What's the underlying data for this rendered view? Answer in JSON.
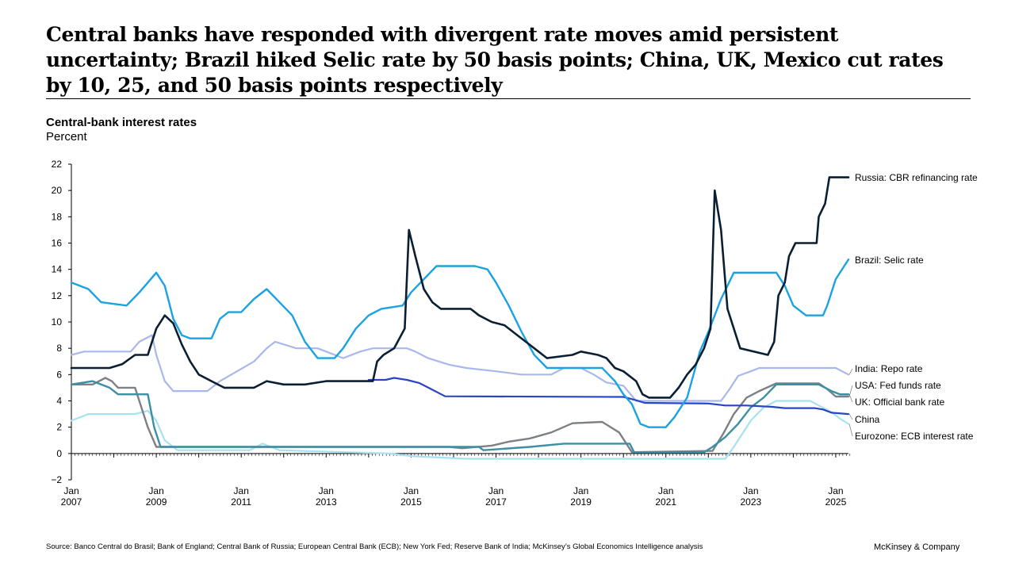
{
  "title": "Central banks have responded with divergent rate moves amid persistent uncertainty; Brazil hiked Selic rate by 50 basis points; China, UK, Mexico cut rates by 10, 25, and 50 basis points respectively",
  "footer": {
    "source": "Source: Banco Central do Brasil; Bank of England; Central Bank of Russia; European Central Bank (ECB); New York Fed; Reserve Bank of India; McKinsey’s Global Economics Intelligence analysis",
    "brand": "McKinsey & Company"
  },
  "chart_data": {
    "type": "line",
    "title": "Central-bank interest rates",
    "ylabel": "Percent",
    "xlabel": "",
    "ylim": [
      -2,
      22
    ],
    "xlim": [
      2007.0,
      2025.3
    ],
    "yticks": [
      "−2",
      "0",
      "2",
      "4",
      "6",
      "8",
      "10",
      "12",
      "14",
      "16",
      "18",
      "20",
      "22"
    ],
    "xticks": [
      {
        "year": 2007,
        "top": "Jan",
        "bottom": "2007"
      },
      {
        "year": 2009,
        "top": "Jan",
        "bottom": "2009"
      },
      {
        "year": 2011,
        "top": "Jan",
        "bottom": "2011"
      },
      {
        "year": 2013,
        "top": "Jan",
        "bottom": "2013"
      },
      {
        "year": 2015,
        "top": "Jan",
        "bottom": "2015"
      },
      {
        "year": 2017,
        "top": "Jan",
        "bottom": "2017"
      },
      {
        "year": 2019,
        "top": "Jan",
        "bottom": "2019"
      },
      {
        "year": 2021,
        "top": "Jan",
        "bottom": "2021"
      },
      {
        "year": 2023,
        "top": "Jan",
        "bottom": "2023"
      },
      {
        "year": 2025,
        "top": "Jan",
        "bottom": "2025"
      }
    ],
    "series": [
      {
        "name": "Russia: CBR refinancing rate",
        "color": "#0b1f33",
        "width": 2.6,
        "label_value": 21.0,
        "points": [
          [
            2007.0,
            6.5
          ],
          [
            2007.9,
            6.5
          ],
          [
            2008.2,
            6.8
          ],
          [
            2008.5,
            7.5
          ],
          [
            2008.8,
            7.5
          ],
          [
            2009.0,
            9.5
          ],
          [
            2009.2,
            10.5
          ],
          [
            2009.4,
            9.9
          ],
          [
            2009.6,
            8.3
          ],
          [
            2009.8,
            7.0
          ],
          [
            2010.0,
            6.0
          ],
          [
            2010.3,
            5.5
          ],
          [
            2010.6,
            5.0
          ],
          [
            2011.0,
            5.0
          ],
          [
            2011.3,
            5.0
          ],
          [
            2011.6,
            5.5
          ],
          [
            2012.0,
            5.25
          ],
          [
            2012.5,
            5.25
          ],
          [
            2013.0,
            5.5
          ],
          [
            2013.5,
            5.5
          ],
          [
            2014.0,
            5.5
          ],
          [
            2014.1,
            5.5
          ],
          [
            2014.2,
            7.0
          ],
          [
            2014.35,
            7.5
          ],
          [
            2014.6,
            8.0
          ],
          [
            2014.85,
            9.5
          ],
          [
            2014.95,
            17.0
          ],
          [
            2015.1,
            15.0
          ],
          [
            2015.3,
            12.5
          ],
          [
            2015.5,
            11.5
          ],
          [
            2015.7,
            11.0
          ],
          [
            2016.4,
            11.0
          ],
          [
            2016.6,
            10.5
          ],
          [
            2016.9,
            10.0
          ],
          [
            2017.2,
            9.75
          ],
          [
            2017.5,
            9.0
          ],
          [
            2017.8,
            8.25
          ],
          [
            2018.0,
            7.75
          ],
          [
            2018.2,
            7.25
          ],
          [
            2018.8,
            7.5
          ],
          [
            2019.0,
            7.75
          ],
          [
            2019.4,
            7.5
          ],
          [
            2019.6,
            7.25
          ],
          [
            2019.8,
            6.5
          ],
          [
            2020.0,
            6.25
          ],
          [
            2020.3,
            5.5
          ],
          [
            2020.45,
            4.5
          ],
          [
            2020.6,
            4.25
          ],
          [
            2021.1,
            4.25
          ],
          [
            2021.3,
            5.0
          ],
          [
            2021.5,
            6.0
          ],
          [
            2021.7,
            6.75
          ],
          [
            2021.9,
            8.0
          ],
          [
            2022.05,
            9.5
          ],
          [
            2022.15,
            20.0
          ],
          [
            2022.3,
            17.0
          ],
          [
            2022.45,
            11.0
          ],
          [
            2022.6,
            9.5
          ],
          [
            2022.75,
            8.0
          ],
          [
            2023.4,
            7.5
          ],
          [
            2023.55,
            8.5
          ],
          [
            2023.65,
            12.0
          ],
          [
            2023.8,
            13.0
          ],
          [
            2023.9,
            15.0
          ],
          [
            2024.05,
            16.0
          ],
          [
            2024.55,
            16.0
          ],
          [
            2024.6,
            18.0
          ],
          [
            2024.75,
            19.0
          ],
          [
            2024.85,
            21.0
          ],
          [
            2025.3,
            21.0
          ]
        ]
      },
      {
        "name": "Brazil: Selic rate",
        "color": "#1aa3e0",
        "width": 2.4,
        "label_value": 14.75,
        "points": [
          [
            2007.0,
            13.0
          ],
          [
            2007.4,
            12.5
          ],
          [
            2007.7,
            11.5
          ],
          [
            2008.3,
            11.25
          ],
          [
            2008.6,
            12.25
          ],
          [
            2008.8,
            13.0
          ],
          [
            2009.0,
            13.75
          ],
          [
            2009.2,
            12.75
          ],
          [
            2009.4,
            10.25
          ],
          [
            2009.6,
            9.0
          ],
          [
            2009.8,
            8.75
          ],
          [
            2010.3,
            8.75
          ],
          [
            2010.5,
            10.25
          ],
          [
            2010.7,
            10.75
          ],
          [
            2011.0,
            10.75
          ],
          [
            2011.3,
            11.75
          ],
          [
            2011.6,
            12.5
          ],
          [
            2011.9,
            11.5
          ],
          [
            2012.2,
            10.5
          ],
          [
            2012.5,
            8.5
          ],
          [
            2012.8,
            7.25
          ],
          [
            2013.2,
            7.25
          ],
          [
            2013.4,
            8.0
          ],
          [
            2013.7,
            9.5
          ],
          [
            2014.0,
            10.5
          ],
          [
            2014.3,
            11.0
          ],
          [
            2014.8,
            11.25
          ],
          [
            2015.0,
            12.25
          ],
          [
            2015.3,
            13.25
          ],
          [
            2015.6,
            14.25
          ],
          [
            2016.5,
            14.25
          ],
          [
            2016.8,
            14.0
          ],
          [
            2017.0,
            13.0
          ],
          [
            2017.3,
            11.25
          ],
          [
            2017.6,
            9.25
          ],
          [
            2017.9,
            7.5
          ],
          [
            2018.2,
            6.5
          ],
          [
            2019.5,
            6.5
          ],
          [
            2019.8,
            5.5
          ],
          [
            2020.0,
            4.5
          ],
          [
            2020.2,
            3.75
          ],
          [
            2020.4,
            2.25
          ],
          [
            2020.6,
            2.0
          ],
          [
            2021.0,
            2.0
          ],
          [
            2021.2,
            2.75
          ],
          [
            2021.5,
            4.25
          ],
          [
            2021.8,
            7.75
          ],
          [
            2022.0,
            9.25
          ],
          [
            2022.3,
            11.75
          ],
          [
            2022.6,
            13.75
          ],
          [
            2023.6,
            13.75
          ],
          [
            2023.8,
            12.75
          ],
          [
            2024.0,
            11.25
          ],
          [
            2024.3,
            10.5
          ],
          [
            2024.7,
            10.5
          ],
          [
            2024.8,
            11.25
          ],
          [
            2025.0,
            13.25
          ],
          [
            2025.2,
            14.25
          ],
          [
            2025.3,
            14.75
          ]
        ]
      },
      {
        "name": "India: Repo rate",
        "color": "#a9b8ec",
        "width": 2.2,
        "label_value": 6.0,
        "points": [
          [
            2007.0,
            7.5
          ],
          [
            2007.3,
            7.75
          ],
          [
            2008.4,
            7.75
          ],
          [
            2008.6,
            8.5
          ],
          [
            2008.9,
            9.0
          ],
          [
            2009.0,
            7.5
          ],
          [
            2009.2,
            5.5
          ],
          [
            2009.4,
            4.75
          ],
          [
            2010.2,
            4.75
          ],
          [
            2010.5,
            5.5
          ],
          [
            2010.9,
            6.25
          ],
          [
            2011.3,
            7.0
          ],
          [
            2011.6,
            8.0
          ],
          [
            2011.8,
            8.5
          ],
          [
            2012.3,
            8.0
          ],
          [
            2012.8,
            8.0
          ],
          [
            2013.0,
            7.75
          ],
          [
            2013.4,
            7.25
          ],
          [
            2013.8,
            7.75
          ],
          [
            2014.1,
            8.0
          ],
          [
            2014.9,
            8.0
          ],
          [
            2015.1,
            7.75
          ],
          [
            2015.4,
            7.25
          ],
          [
            2015.9,
            6.75
          ],
          [
            2016.3,
            6.5
          ],
          [
            2017.0,
            6.25
          ],
          [
            2017.6,
            6.0
          ],
          [
            2018.3,
            6.0
          ],
          [
            2018.6,
            6.5
          ],
          [
            2019.0,
            6.5
          ],
          [
            2019.3,
            6.0
          ],
          [
            2019.6,
            5.4
          ],
          [
            2020.0,
            5.15
          ],
          [
            2020.3,
            4.0
          ],
          [
            2021.0,
            4.0
          ],
          [
            2022.3,
            4.0
          ],
          [
            2022.5,
            4.9
          ],
          [
            2022.7,
            5.9
          ],
          [
            2023.0,
            6.25
          ],
          [
            2023.2,
            6.5
          ],
          [
            2025.0,
            6.5
          ],
          [
            2025.15,
            6.25
          ],
          [
            2025.3,
            6.0
          ]
        ]
      },
      {
        "name": "USA: Fed funds rate",
        "color": "#7d8085",
        "width": 2.4,
        "label_value": 4.33,
        "points": [
          [
            2007.0,
            5.25
          ],
          [
            2007.5,
            5.25
          ],
          [
            2007.8,
            5.75
          ],
          [
            2007.95,
            5.5
          ],
          [
            2008.1,
            5.0
          ],
          [
            2008.5,
            5.0
          ],
          [
            2008.8,
            2.0
          ],
          [
            2009.0,
            0.5
          ],
          [
            2015.9,
            0.5
          ],
          [
            2016.2,
            0.4
          ],
          [
            2016.9,
            0.6
          ],
          [
            2017.3,
            0.9
          ],
          [
            2017.8,
            1.15
          ],
          [
            2018.3,
            1.6
          ],
          [
            2018.8,
            2.3
          ],
          [
            2019.5,
            2.4
          ],
          [
            2019.9,
            1.6
          ],
          [
            2020.2,
            0.1
          ],
          [
            2022.1,
            0.2
          ],
          [
            2022.35,
            1.5
          ],
          [
            2022.6,
            3.0
          ],
          [
            2022.9,
            4.25
          ],
          [
            2023.2,
            4.75
          ],
          [
            2023.6,
            5.33
          ],
          [
            2024.6,
            5.33
          ],
          [
            2024.8,
            4.9
          ],
          [
            2025.0,
            4.33
          ],
          [
            2025.3,
            4.33
          ]
        ]
      },
      {
        "name": "UK: Official bank rate",
        "color": "#3d8fa3",
        "width": 2.4,
        "label_value": 4.5,
        "points": [
          [
            2007.0,
            5.25
          ],
          [
            2007.5,
            5.5
          ],
          [
            2007.9,
            5.0
          ],
          [
            2008.1,
            4.5
          ],
          [
            2008.8,
            4.5
          ],
          [
            2008.95,
            2.0
          ],
          [
            2009.1,
            0.5
          ],
          [
            2016.6,
            0.5
          ],
          [
            2016.7,
            0.25
          ],
          [
            2017.8,
            0.5
          ],
          [
            2018.6,
            0.75
          ],
          [
            2020.15,
            0.75
          ],
          [
            2020.25,
            0.1
          ],
          [
            2021.9,
            0.1
          ],
          [
            2022.1,
            0.5
          ],
          [
            2022.4,
            1.25
          ],
          [
            2022.7,
            2.25
          ],
          [
            2023.0,
            3.5
          ],
          [
            2023.3,
            4.25
          ],
          [
            2023.6,
            5.25
          ],
          [
            2024.6,
            5.25
          ],
          [
            2024.9,
            4.75
          ],
          [
            2025.1,
            4.5
          ],
          [
            2025.3,
            4.5
          ]
        ]
      },
      {
        "name": "China",
        "color": "#2a44c6",
        "width": 2.2,
        "label_value": 3.0,
        "points": [
          [
            2014.0,
            5.6
          ],
          [
            2014.4,
            5.6
          ],
          [
            2014.6,
            5.75
          ],
          [
            2014.9,
            5.6
          ],
          [
            2015.2,
            5.35
          ],
          [
            2015.5,
            4.85
          ],
          [
            2015.8,
            4.35
          ],
          [
            2020.0,
            4.3
          ],
          [
            2020.3,
            4.05
          ],
          [
            2020.5,
            3.85
          ],
          [
            2022.0,
            3.8
          ],
          [
            2022.4,
            3.65
          ],
          [
            2022.9,
            3.65
          ],
          [
            2023.5,
            3.55
          ],
          [
            2023.8,
            3.45
          ],
          [
            2024.5,
            3.45
          ],
          [
            2024.7,
            3.35
          ],
          [
            2024.9,
            3.1
          ],
          [
            2025.3,
            3.0
          ]
        ]
      },
      {
        "name": "Eurozone: ECB interest rate",
        "color": "#a6e2ef",
        "width": 2.2,
        "label_value": 2.25,
        "points": [
          [
            2007.0,
            2.5
          ],
          [
            2007.4,
            3.0
          ],
          [
            2008.5,
            3.0
          ],
          [
            2008.8,
            3.25
          ],
          [
            2009.0,
            2.5
          ],
          [
            2009.2,
            1.0
          ],
          [
            2009.5,
            0.25
          ],
          [
            2011.2,
            0.25
          ],
          [
            2011.5,
            0.75
          ],
          [
            2011.9,
            0.25
          ],
          [
            2014.5,
            0.0
          ],
          [
            2015.0,
            -0.2
          ],
          [
            2016.3,
            -0.4
          ],
          [
            2022.4,
            -0.4
          ],
          [
            2022.6,
            0.5
          ],
          [
            2022.8,
            1.5
          ],
          [
            2023.0,
            2.5
          ],
          [
            2023.3,
            3.5
          ],
          [
            2023.6,
            4.0
          ],
          [
            2024.4,
            4.0
          ],
          [
            2024.6,
            3.65
          ],
          [
            2024.9,
            3.15
          ],
          [
            2025.1,
            2.65
          ],
          [
            2025.3,
            2.25
          ]
        ]
      }
    ]
  }
}
